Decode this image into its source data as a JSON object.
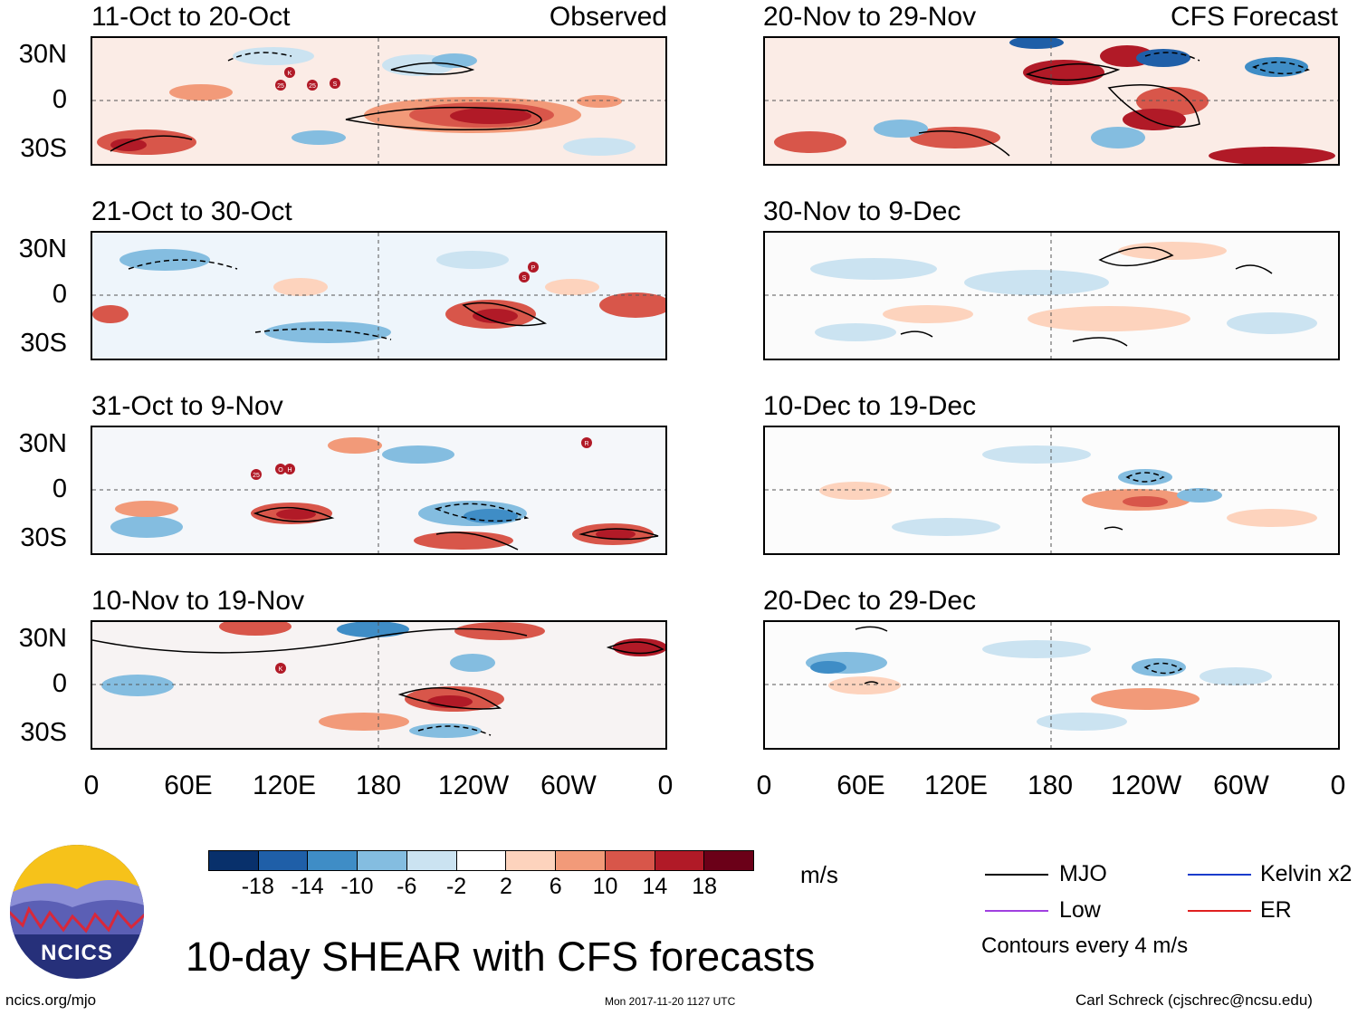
{
  "panels_left": [
    {
      "title": "11-Oct to 20-Oct",
      "label": "Observed"
    },
    {
      "title": "21-Oct to 30-Oct",
      "label": ""
    },
    {
      "title": "31-Oct to 9-Nov",
      "label": ""
    },
    {
      "title": "10-Nov to 19-Nov",
      "label": ""
    }
  ],
  "panels_right": [
    {
      "title": "20-Nov to 29-Nov",
      "label": "CFS Forecast"
    },
    {
      "title": "30-Nov to 9-Dec",
      "label": ""
    },
    {
      "title": "10-Dec to 19-Dec",
      "label": ""
    },
    {
      "title": "20-Dec to 29-Dec",
      "label": ""
    }
  ],
  "lat_labels": [
    "30N",
    "0",
    "30S"
  ],
  "lon_labels": [
    "0",
    "60E",
    "120E",
    "180",
    "120W",
    "60W",
    "0"
  ],
  "storm_markers": {
    "p1": [
      "K",
      "25",
      "25",
      "S"
    ],
    "p2": [
      "P",
      "S"
    ],
    "p3": [
      "25",
      "O",
      "H",
      "R"
    ],
    "p4": [
      "K"
    ]
  },
  "colorbar": {
    "labels": [
      "-18",
      "-14",
      "-10",
      "-6",
      "-2",
      "2",
      "6",
      "10",
      "14",
      "18"
    ],
    "colors": [
      "#08306b",
      "#1f5fa8",
      "#3f8dc6",
      "#84bde0",
      "#cbe3f1",
      "#ffffff",
      "#fdd3bd",
      "#f29a79",
      "#d8564a",
      "#b11a27",
      "#6b0018"
    ],
    "units": "m/s"
  },
  "legend": {
    "items": [
      {
        "label": "MJO",
        "color": "#000000"
      },
      {
        "label": "Kelvin x2",
        "color": "#1a3ccc"
      },
      {
        "label": "Low",
        "color": "#a040e0"
      },
      {
        "label": "ER",
        "color": "#e02020"
      }
    ],
    "note": "Contours every 4 m/s"
  },
  "logo_text": "NCICS",
  "main_title": "10-day SHEAR with CFS forecasts",
  "footer": {
    "url": "ncics.org/mjo",
    "timestamp": "Mon 2017-11-20 1127 UTC",
    "credit": "Carl Schreck (cjschrec@ncsu.edu)"
  }
}
